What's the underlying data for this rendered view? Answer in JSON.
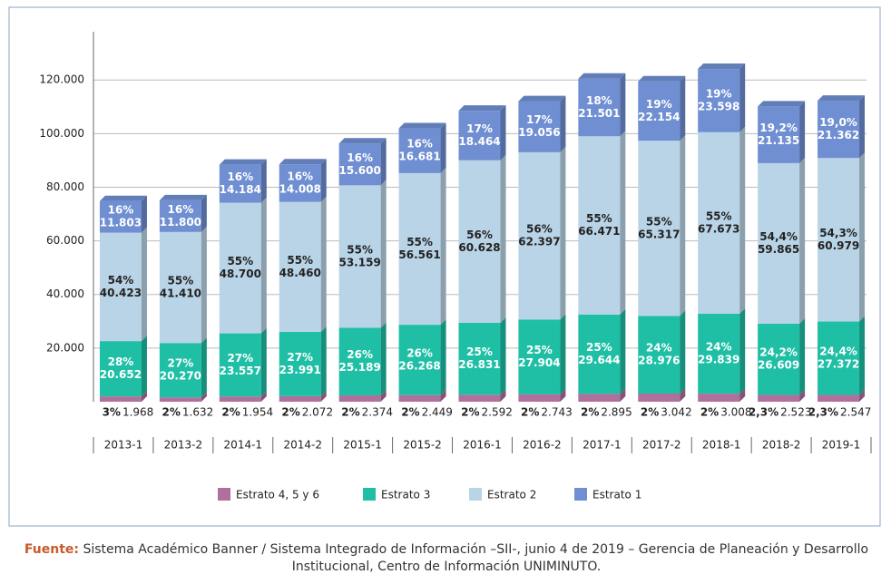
{
  "chart_data": {
    "type": "stacked_bar_3d",
    "categories": [
      "2013-1",
      "2013-2",
      "2014-1",
      "2014-2",
      "2015-1",
      "2015-2",
      "2016-1",
      "2016-2",
      "2017-1",
      "2017-2",
      "2018-1",
      "2018-2",
      "2019-1"
    ],
    "series": [
      {
        "name": "Estrato 4, 5 y 6",
        "color": "#b06f9c",
        "values": [
          1968,
          1632,
          1954,
          2072,
          2374,
          2449,
          2592,
          2743,
          2895,
          3042,
          3008,
          2523,
          2547
        ],
        "value_labels": [
          "1.968",
          "1.632",
          "1.954",
          "2.072",
          "2.374",
          "2.449",
          "2.592",
          "2.743",
          "2.895",
          "3.042",
          "3.008",
          "2.523",
          "2.547"
        ],
        "percents": [
          3,
          2,
          2,
          2,
          2,
          2,
          2,
          2,
          2,
          2,
          2,
          2.3,
          2.3
        ],
        "percent_labels": [
          "3%",
          "2%",
          "2%",
          "2%",
          "2%",
          "2%",
          "2%",
          "2%",
          "2%",
          "2%",
          "2%",
          "2,3%",
          "2,3%"
        ]
      },
      {
        "name": "Estrato 3",
        "color": "#1fbfa6",
        "values": [
          20652,
          20270,
          23557,
          23991,
          25189,
          26268,
          26831,
          27904,
          29644,
          28976,
          29839,
          26609,
          27372
        ],
        "value_labels": [
          "20.652",
          "20.270",
          "23.557",
          "23.991",
          "25.189",
          "26.268",
          "26.831",
          "27.904",
          "29.644",
          "28.976",
          "29.839",
          "26.609",
          "27.372"
        ],
        "percents": [
          28,
          27,
          27,
          27,
          26,
          26,
          25,
          25,
          25,
          24,
          24,
          24.2,
          24.4
        ],
        "percent_labels": [
          "28%",
          "27%",
          "27%",
          "27%",
          "26%",
          "26%",
          "25%",
          "25%",
          "25%",
          "24%",
          "24%",
          "24,2%",
          "24,4%"
        ]
      },
      {
        "name": "Estrato 2",
        "color": "#b9d4e7",
        "values": [
          40423,
          41410,
          48700,
          48460,
          53159,
          56561,
          60628,
          62397,
          66471,
          65317,
          67673,
          59865,
          60979
        ],
        "value_labels": [
          "40.423",
          "41.410",
          "48.700",
          "48.460",
          "53.159",
          "56.561",
          "60.628",
          "62.397",
          "66.471",
          "65.317",
          "67.673",
          "59.865",
          "60.979"
        ],
        "percents": [
          54,
          55,
          55,
          55,
          55,
          55,
          56,
          56,
          55,
          55,
          55,
          54.4,
          54.3
        ],
        "percent_labels": [
          "54%",
          "55%",
          "55%",
          "55%",
          "55%",
          "55%",
          "56%",
          "56%",
          "55%",
          "55%",
          "55%",
          "54,4%",
          "54,3%"
        ]
      },
      {
        "name": "Estrato 1",
        "color": "#6f8fd2",
        "values": [
          11803,
          11800,
          14184,
          14008,
          15600,
          16681,
          18464,
          19056,
          21501,
          22154,
          23598,
          21135,
          21362
        ],
        "value_labels": [
          "11.803",
          "11.800",
          "14.184",
          "14.008",
          "15.600",
          "16.681",
          "18.464",
          "19.056",
          "21.501",
          "22.154",
          "23.598",
          "21.135",
          "21.362"
        ],
        "percents": [
          16,
          16,
          16,
          16,
          16,
          16,
          17,
          17,
          18,
          19,
          19,
          19.2,
          19.0
        ],
        "percent_labels": [
          "16%",
          "16%",
          "16%",
          "16%",
          "16%",
          "16%",
          "17%",
          "17%",
          "18%",
          "19%",
          "19%",
          "19,2%",
          "19,0%"
        ]
      }
    ],
    "ylim": [
      0,
      138000
    ],
    "yticks": [
      {
        "value": 20000,
        "label": "20.000"
      },
      {
        "value": 40000,
        "label": "40.000"
      },
      {
        "value": 60000,
        "label": "60.000"
      },
      {
        "value": 80000,
        "label": "80.000"
      },
      {
        "value": 100000,
        "label": "100.000"
      },
      {
        "value": 120000,
        "label": "120.000"
      }
    ],
    "grid": true,
    "legend": "bottom",
    "source_label": "Fuente:",
    "source": "Sistema Académico Banner / Sistema Integrado de Información –SII-, junio 4 de 2019 – Gerencia de Planeación y Desarrollo Institucional, Centro de Información UNIMINUTO."
  }
}
